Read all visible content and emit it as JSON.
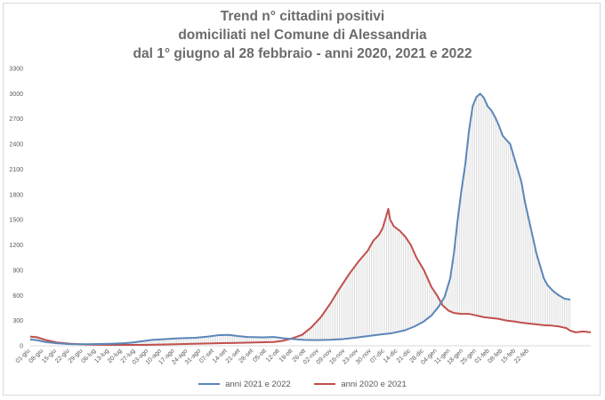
{
  "chart_data": {
    "type": "line",
    "title": [
      "Trend n° cittadini positivi",
      "domiciliati nel Comune di Alessandria",
      "dal 1° giugno al 28 febbraio - anni 2020, 2021 e 2022"
    ],
    "xlabel": "",
    "ylabel": "",
    "ylim": [
      0,
      3300
    ],
    "yticks": [
      0,
      300,
      600,
      900,
      1200,
      1500,
      1800,
      2100,
      2400,
      2700,
      3000,
      3300
    ],
    "grid": "vertical-drop-lines",
    "legend": "bottom",
    "x_tick_labels": [
      "01-giu",
      "08-giu",
      "15-giu",
      "22-giu",
      "29-giu",
      "06-lug",
      "13-lug",
      "20-lug",
      "27-lug",
      "03-ago",
      "10-ago",
      "17-ago",
      "24-ago",
      "31-ago",
      "07-set",
      "14-set",
      "21-set",
      "28-set",
      "05-ott",
      "12-ott",
      "19-ott",
      "26-ott",
      "02-nov",
      "09-nov",
      "16-nov",
      "23-nov",
      "30-nov",
      "07-dic",
      "14-dic",
      "21-dic",
      "28-dic",
      "04-gen",
      "11-gen",
      "18-gen",
      "25-gen",
      "01-feb",
      "08-feb",
      "15-feb",
      "22-feb"
    ],
    "x_day_span": [
      0,
      272
    ],
    "series": [
      {
        "name": "anni 2021 e 2022",
        "color": "#5b86b8",
        "points": [
          [
            0,
            75
          ],
          [
            4,
            65
          ],
          [
            8,
            45
          ],
          [
            14,
            30
          ],
          [
            21,
            20
          ],
          [
            30,
            18
          ],
          [
            40,
            22
          ],
          [
            50,
            30
          ],
          [
            55,
            40
          ],
          [
            60,
            55
          ],
          [
            65,
            70
          ],
          [
            72,
            80
          ],
          [
            80,
            90
          ],
          [
            88,
            95
          ],
          [
            95,
            110
          ],
          [
            100,
            125
          ],
          [
            106,
            130
          ],
          [
            111,
            115
          ],
          [
            116,
            105
          ],
          [
            124,
            100
          ],
          [
            130,
            105
          ],
          [
            135,
            90
          ],
          [
            140,
            80
          ],
          [
            146,
            70
          ],
          [
            153,
            68
          ],
          [
            160,
            72
          ],
          [
            167,
            80
          ],
          [
            173,
            95
          ],
          [
            180,
            115
          ],
          [
            187,
            135
          ],
          [
            193,
            150
          ],
          [
            200,
            185
          ],
          [
            205,
            230
          ],
          [
            210,
            290
          ],
          [
            214,
            360
          ],
          [
            218,
            470
          ],
          [
            221,
            580
          ],
          [
            224,
            800
          ],
          [
            226,
            1100
          ],
          [
            228,
            1500
          ],
          [
            230,
            1850
          ],
          [
            232,
            2150
          ],
          [
            234,
            2550
          ],
          [
            236,
            2850
          ],
          [
            238,
            2960
          ],
          [
            240,
            3000
          ],
          [
            242,
            2950
          ],
          [
            244,
            2850
          ],
          [
            246,
            2800
          ],
          [
            248,
            2720
          ],
          [
            250,
            2620
          ],
          [
            252,
            2500
          ],
          [
            254,
            2450
          ],
          [
            256,
            2400
          ],
          [
            258,
            2250
          ],
          [
            260,
            2100
          ],
          [
            262,
            1950
          ],
          [
            264,
            1700
          ],
          [
            266,
            1500
          ],
          [
            268,
            1300
          ],
          [
            270,
            1100
          ],
          [
            272,
            950
          ],
          [
            274,
            800
          ],
          [
            276,
            720
          ],
          [
            279,
            650
          ],
          [
            282,
            600
          ],
          [
            285,
            560
          ],
          [
            288,
            550
          ]
        ]
      },
      {
        "name": "anni 2020 e 2021",
        "color": "#c0504d",
        "points": [
          [
            0,
            110
          ],
          [
            4,
            100
          ],
          [
            8,
            70
          ],
          [
            14,
            40
          ],
          [
            21,
            25
          ],
          [
            30,
            15
          ],
          [
            40,
            12
          ],
          [
            50,
            10
          ],
          [
            60,
            10
          ],
          [
            70,
            15
          ],
          [
            80,
            20
          ],
          [
            90,
            25
          ],
          [
            100,
            30
          ],
          [
            110,
            35
          ],
          [
            120,
            40
          ],
          [
            130,
            45
          ],
          [
            135,
            60
          ],
          [
            140,
            90
          ],
          [
            145,
            130
          ],
          [
            150,
            220
          ],
          [
            155,
            340
          ],
          [
            160,
            500
          ],
          [
            165,
            680
          ],
          [
            170,
            850
          ],
          [
            175,
            1000
          ],
          [
            180,
            1130
          ],
          [
            183,
            1250
          ],
          [
            186,
            1320
          ],
          [
            188,
            1400
          ],
          [
            190,
            1550
          ],
          [
            191,
            1630
          ],
          [
            192,
            1500
          ],
          [
            194,
            1420
          ],
          [
            197,
            1370
          ],
          [
            200,
            1300
          ],
          [
            203,
            1200
          ],
          [
            206,
            1050
          ],
          [
            210,
            900
          ],
          [
            214,
            700
          ],
          [
            217,
            600
          ],
          [
            220,
            480
          ],
          [
            223,
            420
          ],
          [
            226,
            390
          ],
          [
            230,
            380
          ],
          [
            234,
            380
          ],
          [
            238,
            360
          ],
          [
            242,
            340
          ],
          [
            246,
            330
          ],
          [
            250,
            320
          ],
          [
            254,
            300
          ],
          [
            258,
            290
          ],
          [
            262,
            275
          ],
          [
            266,
            265
          ],
          [
            270,
            255
          ],
          [
            274,
            245
          ],
          [
            278,
            240
          ],
          [
            282,
            230
          ],
          [
            286,
            210
          ],
          [
            288,
            180
          ],
          [
            291,
            160
          ],
          [
            295,
            170
          ],
          [
            299,
            160
          ]
        ]
      }
    ]
  }
}
